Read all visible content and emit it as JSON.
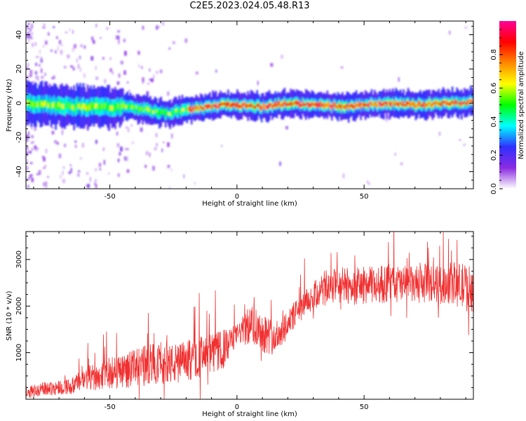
{
  "title": "C2E5.2023.024.05.48.R13",
  "chart_data": [
    {
      "type": "heatmap",
      "xlabel": "Height of straight line (km)",
      "ylabel": "Frequency (Hz)",
      "xlim": [
        -83,
        93
      ],
      "ylim": [
        -50,
        48
      ],
      "x_ticks": [
        -50,
        0,
        50
      ],
      "x_tick_labels": [
        "-50",
        "0",
        "50"
      ],
      "y_ticks": [
        -40,
        -20,
        0,
        20,
        40
      ],
      "y_tick_labels": [
        "-40",
        "-20",
        "0",
        "20",
        "40"
      ],
      "ridge": {
        "x": [
          -83,
          -75,
          -65,
          -55,
          -45,
          -38,
          -32,
          -28,
          -24,
          -20,
          -15,
          -10,
          -5,
          0,
          5,
          10,
          15,
          20,
          30,
          40,
          50,
          60,
          70,
          80,
          88,
          93
        ],
        "freq": [
          0,
          -1,
          -2,
          -2,
          -2,
          -3,
          -5,
          -6,
          -5,
          -4,
          -3,
          -2,
          -1,
          -1,
          -2,
          -2,
          -1,
          0,
          -1,
          -2,
          -1,
          0,
          -1,
          0,
          0,
          1
        ]
      },
      "colorbar": {
        "label": "Normalized spectral amplitude",
        "range": [
          0,
          1
        ],
        "ticks": [
          0.0,
          0.2,
          0.4,
          0.6,
          0.8
        ],
        "tick_labels": [
          "0.0",
          "0.2",
          "0.4",
          "0.6",
          "0.8"
        ],
        "colors": [
          "#ffffff",
          "#8a2be2",
          "#3030ff",
          "#00ffff",
          "#00ff00",
          "#ffff00",
          "#ff8800",
          "#ff0000",
          "#ff0099"
        ]
      }
    },
    {
      "type": "line",
      "xlabel": "Height of straight line (km)",
      "ylabel": "SNR (10 * v/v)",
      "xlim": [
        -83,
        93
      ],
      "ylim": [
        0,
        3600
      ],
      "x_ticks": [
        -50,
        0,
        50
      ],
      "x_tick_labels": [
        "-50",
        "0",
        "50"
      ],
      "y_ticks": [
        1000,
        2000,
        3000
      ],
      "y_tick_labels": [
        "1000",
        "2000",
        "3000"
      ],
      "line_color": "#f03030",
      "envelope": {
        "x": [
          -83,
          -75,
          -65,
          -60,
          -50,
          -40,
          -35,
          -30,
          -25,
          -20,
          -15,
          -10,
          -5,
          0,
          3,
          6,
          10,
          15,
          20,
          25,
          30,
          35,
          40,
          45,
          50,
          55,
          60,
          65,
          70,
          75,
          80,
          85,
          90,
          93
        ],
        "mean": [
          150,
          230,
          280,
          430,
          560,
          660,
          750,
          780,
          750,
          820,
          900,
          960,
          1080,
          1400,
          1500,
          1620,
          1450,
          1300,
          1650,
          1950,
          2200,
          2400,
          2450,
          2420,
          2450,
          2450,
          2500,
          2450,
          2450,
          2500,
          2450,
          2500,
          2400,
          2350
        ],
        "amp": [
          130,
          150,
          170,
          260,
          340,
          400,
          450,
          450,
          430,
          440,
          450,
          450,
          420,
          200,
          350,
          450,
          450,
          350,
          300,
          280,
          320,
          380,
          400,
          400,
          400,
          400,
          420,
          420,
          400,
          420,
          420,
          450,
          520,
          480
        ]
      }
    }
  ]
}
